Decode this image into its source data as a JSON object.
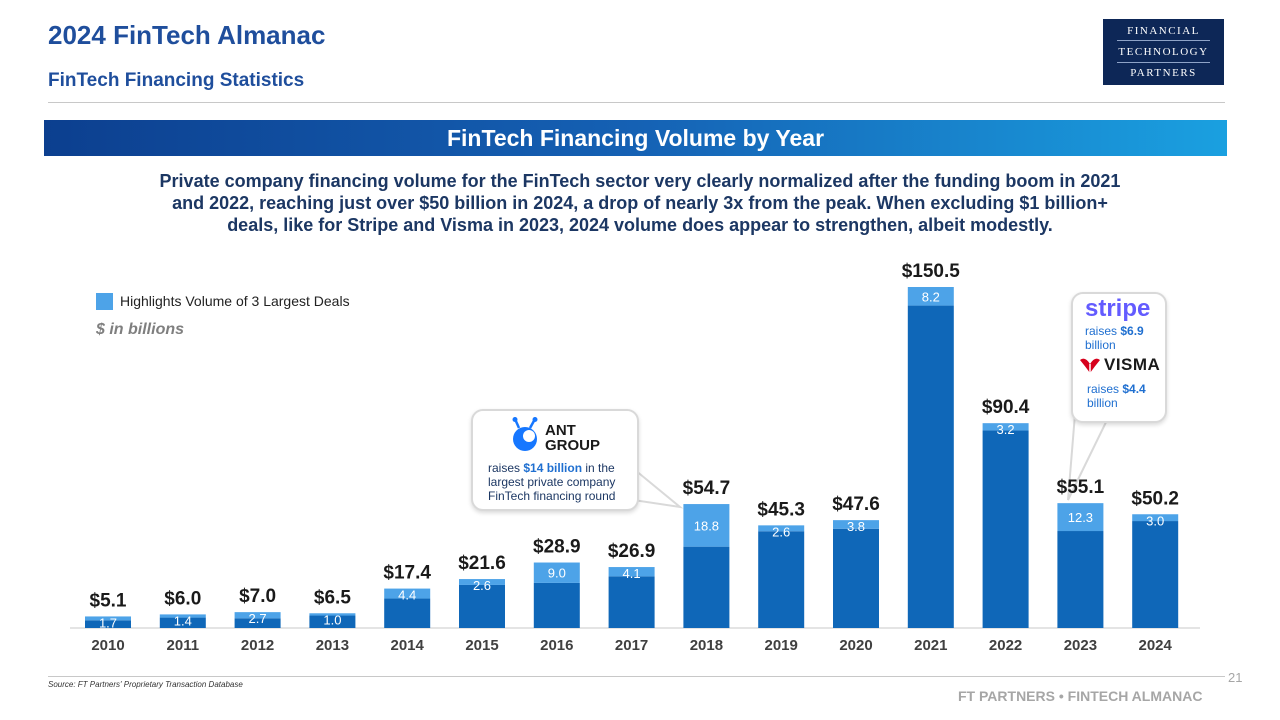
{
  "header": {
    "title": "2024 FinTech Almanac",
    "subtitle": "FinTech Financing Statistics"
  },
  "logo": {
    "line1": "FINANCIAL",
    "line2": "TECHNOLOGY",
    "line3": "PARTNERS"
  },
  "banner": {
    "title": "FinTech Financing Volume by Year"
  },
  "description": "Private company financing volume for the FinTech sector very clearly normalized after the funding boom in 2021 and 2022, reaching just over $50 billion in 2024, a drop of nearly 3x from the peak. When excluding $1 billion+ deals, like for Stripe and Visma in 2023, 2024 volume does appear to strengthen, albeit modestly.",
  "legend": {
    "label": "Highlights Volume of 3 Largest Deals"
  },
  "units": "$ in billions",
  "callouts": {
    "ant": {
      "name_line1": "ANT",
      "name_line2": "GROUP",
      "text_prefix": "raises ",
      "text_bold": "$14 billion",
      "text_suffix": " in the largest private company FinTech financing round"
    },
    "stripe": {
      "logo": "stripe",
      "text_prefix": "raises ",
      "text_bold": "$6.9",
      "text_suffix": " billion"
    },
    "visma": {
      "logo": "VISMA",
      "text_prefix": "raises ",
      "text_bold": "$4.4",
      "text_suffix": " billion"
    }
  },
  "colors": {
    "base": "#0f67b8",
    "top3": "#4da3e8",
    "title": "#1f4e9c",
    "text": "#1c3763"
  },
  "chart_data": {
    "type": "bar",
    "stacked": true,
    "categories": [
      "2010",
      "2011",
      "2012",
      "2013",
      "2014",
      "2015",
      "2016",
      "2017",
      "2018",
      "2019",
      "2020",
      "2021",
      "2022",
      "2023",
      "2024"
    ],
    "totals": [
      5.1,
      6.0,
      7.0,
      6.5,
      17.4,
      21.6,
      28.9,
      26.9,
      54.7,
      45.3,
      47.6,
      150.5,
      90.4,
      55.1,
      50.2
    ],
    "total_labels": [
      "$5.1",
      "$6.0",
      "$7.0",
      "$6.5",
      "$17.4",
      "$21.6",
      "$28.9",
      "$26.9",
      "$54.7",
      "$45.3",
      "$47.6",
      "$150.5",
      "$90.4",
      "$55.1",
      "$50.2"
    ],
    "series": [
      {
        "name": "",
        "values": [
          3.4,
          4.6,
          4.3,
          5.5,
          13.0,
          19.0,
          19.9,
          22.8,
          35.9,
          42.7,
          43.8,
          142.3,
          87.2,
          42.8,
          47.2
        ]
      },
      {
        "name": "Highlights Volume of 3 Largest Deals",
        "values": [
          1.7,
          1.4,
          2.7,
          1.0,
          4.4,
          2.6,
          9.0,
          4.1,
          18.8,
          2.6,
          3.8,
          8.2,
          3.2,
          12.3,
          3.0
        ]
      }
    ],
    "segment_labels": [
      "1.7",
      "1.4",
      "2.7",
      "1.0",
      "4.4",
      "2.6",
      "9.0",
      "4.1",
      "18.8",
      "2.6",
      "3.8",
      "8.2",
      "3.2",
      "12.3",
      "3.0"
    ],
    "ylim": [
      0,
      150.5
    ],
    "xlabel": "",
    "ylabel": "",
    "grid": false,
    "legend_position": "top-left"
  },
  "footer": {
    "source": "Source: FT Partners' Proprietary Transaction Database",
    "page": "21",
    "brand": "FT PARTNERS • FINTECH ALMANAC"
  }
}
